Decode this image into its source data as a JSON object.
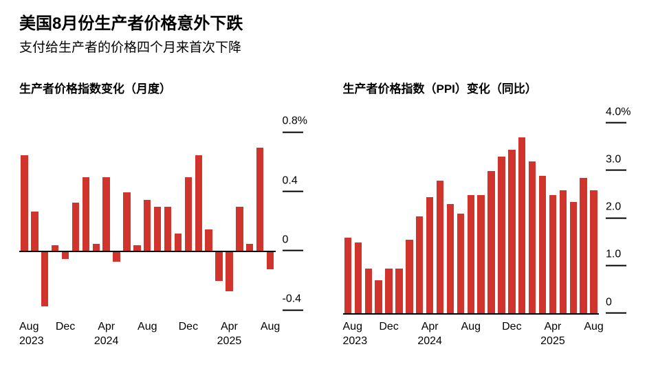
{
  "header": {
    "title": "美国8月份生产者价格意外下跌",
    "subtitle": "支付给生产者的价格四个月来首次下降"
  },
  "theme": {
    "bar_color": "#d0342c",
    "axis_color": "#000000",
    "background": "#ffffff"
  },
  "chart_data": [
    {
      "type": "bar",
      "title": "生产者价格指数变化（月度）",
      "unit": "%",
      "xlabel": "",
      "ylabel": "",
      "ylim": [
        -0.42,
        0.96
      ],
      "grid": "right-tick-marks-only",
      "legend": "none",
      "x": [
        "Aug 2023",
        "Sep 2023",
        "Oct 2023",
        "Nov 2023",
        "Dec 2023",
        "Jan 2024",
        "Feb 2024",
        "Mar 2024",
        "Apr 2024",
        "May 2024",
        "Jun 2024",
        "Jul 2024",
        "Aug 2024",
        "Sep 2024",
        "Oct 2024",
        "Nov 2024",
        "Dec 2024",
        "Jan 2025",
        "Feb 2025",
        "Mar 2025",
        "Apr 2025",
        "May 2025",
        "Jun 2025",
        "Jul 2025",
        "Aug 2025"
      ],
      "values": [
        0.65,
        0.27,
        -0.37,
        0.04,
        -0.05,
        0.33,
        0.5,
        0.05,
        0.5,
        -0.07,
        0.4,
        0.04,
        0.35,
        0.3,
        0.3,
        0.12,
        0.5,
        0.65,
        0.15,
        -0.2,
        -0.27,
        0.3,
        0.05,
        0.7,
        -0.12
      ],
      "yticks": [
        {
          "label": "0.8%",
          "value": 0.8
        },
        {
          "label": "0.4",
          "value": 0.4
        },
        {
          "label": "0",
          "value": 0
        },
        {
          "label": "-0.4",
          "value": -0.4
        }
      ],
      "xticks": [
        {
          "line1": "Aug",
          "line2": "2023",
          "index": 0,
          "align": "left"
        },
        {
          "line1": "Dec",
          "index": 4
        },
        {
          "line1": "Apr",
          "line2": "2024",
          "index": 8
        },
        {
          "line1": "Aug",
          "index": 12
        },
        {
          "line1": "Dec",
          "index": 16
        },
        {
          "line1": "Apr",
          "line2": "2025",
          "index": 20
        },
        {
          "line1": "Aug",
          "index": 24
        }
      ]
    },
    {
      "type": "bar",
      "title": "生产者价格指数（PPI）变化（同比）",
      "unit": "%",
      "xlabel": "",
      "ylabel": "",
      "ylim": [
        0,
        4.3
      ],
      "grid": "right-tick-marks-only",
      "legend": "none",
      "x": [
        "Aug 2023",
        "Sep 2023",
        "Oct 2023",
        "Nov 2023",
        "Dec 2023",
        "Jan 2024",
        "Feb 2024",
        "Mar 2024",
        "Apr 2024",
        "May 2024",
        "Jun 2024",
        "Jul 2024",
        "Aug 2024",
        "Sep 2024",
        "Oct 2024",
        "Nov 2024",
        "Dec 2024",
        "Jan 2025",
        "Feb 2025",
        "Mar 2025",
        "Apr 2025",
        "May 2025",
        "Jun 2025",
        "Jul 2025",
        "Aug 2025"
      ],
      "values": [
        1.6,
        1.5,
        0.95,
        0.7,
        0.95,
        0.95,
        1.55,
        2.05,
        2.45,
        2.8,
        2.3,
        2.1,
        2.5,
        2.5,
        3.0,
        3.3,
        3.45,
        3.7,
        3.2,
        2.9,
        2.5,
        2.6,
        2.35,
        2.85,
        2.6
      ],
      "yticks": [
        {
          "label": "4.0%",
          "value": 4.0
        },
        {
          "label": "3.0",
          "value": 3.0
        },
        {
          "label": "2.0",
          "value": 2.0
        },
        {
          "label": "1.0",
          "value": 1.0
        },
        {
          "label": "0",
          "value": 0
        }
      ],
      "xticks": [
        {
          "line1": "Aug",
          "line2": "2023",
          "index": 0,
          "align": "left"
        },
        {
          "line1": "Dec",
          "index": 4
        },
        {
          "line1": "Apr",
          "line2": "2024",
          "index": 8
        },
        {
          "line1": "Aug",
          "index": 12
        },
        {
          "line1": "Dec",
          "index": 16
        },
        {
          "line1": "Apr",
          "line2": "2025",
          "index": 20
        },
        {
          "line1": "Aug",
          "index": 24
        }
      ]
    }
  ]
}
